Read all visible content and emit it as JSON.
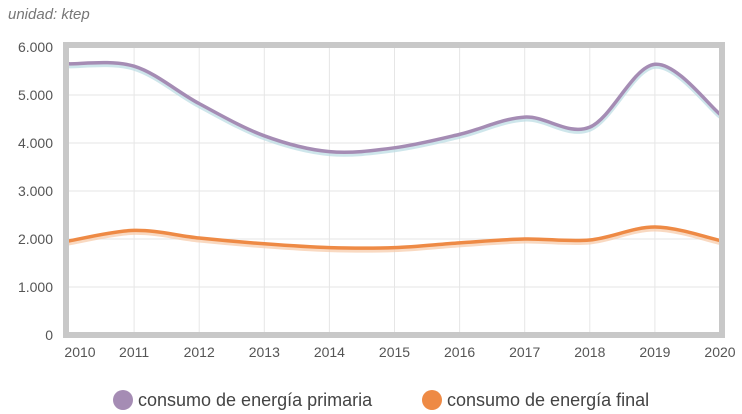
{
  "chart_data": {
    "type": "line",
    "unit_label": "unidad: ktep",
    "x": [
      "2010",
      "2011",
      "2012",
      "2013",
      "2014",
      "2015",
      "2016",
      "2017",
      "2018",
      "2019",
      "2020"
    ],
    "yticks": [
      "0",
      "1.000",
      "2.000",
      "3.000",
      "4.000",
      "5.000",
      "6.000"
    ],
    "ylim": [
      0,
      6000
    ],
    "grid": true,
    "legend_position": "bottom",
    "series": [
      {
        "name": "consumo de energía primaria",
        "color": "#a58cb4",
        "values": [
          5650,
          5600,
          4820,
          4150,
          3820,
          3900,
          4180,
          4540,
          4330,
          5640,
          4600
        ]
      },
      {
        "name": "consumo de energía final",
        "color": "#ee8a45",
        "values": [
          1960,
          2180,
          2020,
          1900,
          1820,
          1820,
          1920,
          2000,
          1980,
          2250,
          1970
        ]
      }
    ],
    "frame_color": "#c8c8c8"
  }
}
